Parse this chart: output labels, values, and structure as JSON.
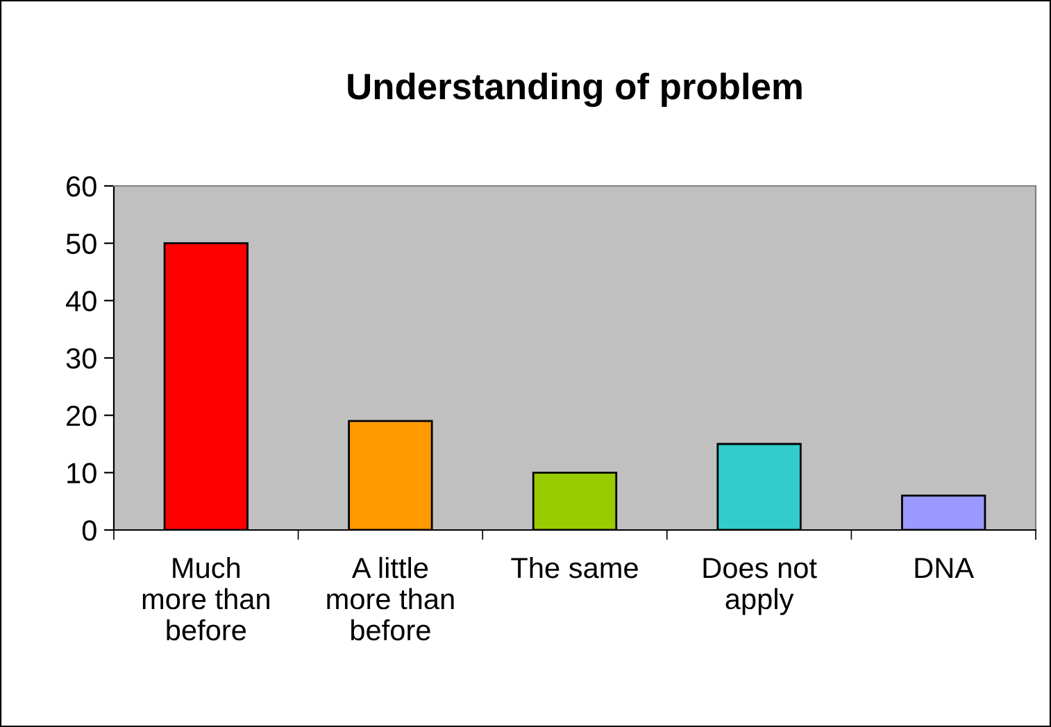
{
  "chart_data": {
    "type": "bar",
    "title": "Understanding of problem",
    "categories": [
      "Much\nmore than\nbefore",
      "A little\nmore than\nbefore",
      "The same",
      "Does not\napply",
      "DNA"
    ],
    "values": [
      50,
      19,
      10,
      15,
      6
    ],
    "colors": [
      "#ff0000",
      "#ff9900",
      "#99cc00",
      "#33cccc",
      "#9999ff"
    ],
    "ylim": [
      0,
      60
    ],
    "yticks": [
      0,
      10,
      20,
      30,
      40,
      50,
      60
    ],
    "grid": false,
    "legend": false
  }
}
